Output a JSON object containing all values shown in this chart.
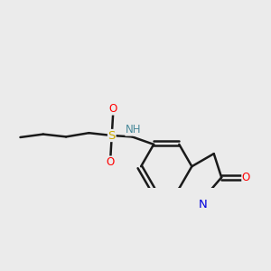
{
  "bg_color": "#ebebeb",
  "bond_color": "#1a1a1a",
  "bond_width": 1.8,
  "atom_colors": {
    "S": "#ccaa00",
    "O": "#ff0000",
    "N_amine": "#4a8a9a",
    "N_lactam": "#0000dd",
    "H_color": "#4a8a9a"
  },
  "font_size": 8.5,
  "figsize": [
    3.0,
    3.0
  ],
  "dpi": 100
}
